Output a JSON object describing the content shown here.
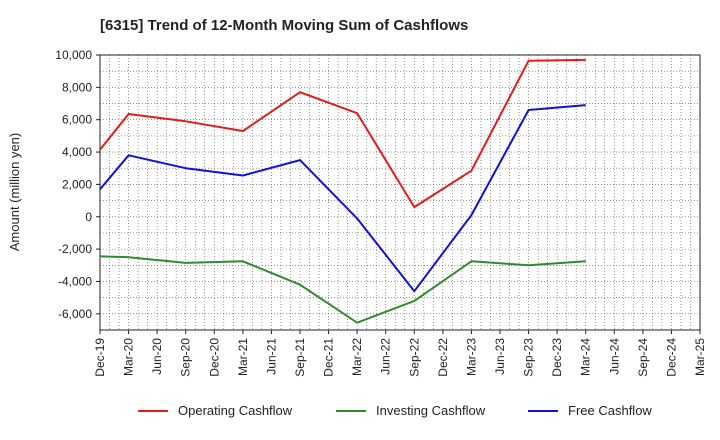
{
  "chart_data": {
    "type": "line",
    "title": "[6315]  Trend of 12-Month Moving Sum of Cashflows",
    "xlabel": "",
    "ylabel": "Amount (million yen)",
    "ylim": [
      -7000,
      10000
    ],
    "yticks": [
      -6000,
      -4000,
      -2000,
      0,
      2000,
      4000,
      6000,
      8000,
      10000
    ],
    "ytick_labels": [
      "-6,000",
      "-4,000",
      "-2,000",
      "0",
      "2,000",
      "4,000",
      "6,000",
      "8,000",
      "10,000"
    ],
    "categories": [
      "Dec-19",
      "Mar-20",
      "Jun-20",
      "Sep-20",
      "Dec-20",
      "Mar-21",
      "Jun-21",
      "Sep-21",
      "Dec-21",
      "Mar-22",
      "Jun-22",
      "Sep-22",
      "Dec-22",
      "Mar-23",
      "Jun-23",
      "Sep-23",
      "Dec-23",
      "Mar-24",
      "Jun-24",
      "Sep-24",
      "Dec-24",
      "Mar-25"
    ],
    "grid": true,
    "legend_position": "bottom",
    "series": [
      {
        "name": "Operating Cashflow",
        "color": "#e41a1c",
        "values": [
          4150,
          6350,
          null,
          5900,
          null,
          5300,
          null,
          7700,
          null,
          6400,
          null,
          600,
          null,
          2850,
          null,
          9650,
          null,
          9700,
          null,
          null,
          null,
          null
        ]
      },
      {
        "name": "Investing Cashflow",
        "color": "#2e8b2e",
        "values": [
          -2450,
          -2500,
          null,
          -2850,
          null,
          -2750,
          null,
          -4200,
          null,
          -6550,
          null,
          -5200,
          null,
          -2750,
          null,
          -3000,
          null,
          -2750,
          null,
          null,
          null,
          null
        ]
      },
      {
        "name": "Free Cashflow",
        "color": "#1111dd",
        "values": [
          1700,
          3800,
          null,
          3000,
          null,
          2550,
          null,
          3500,
          null,
          -100,
          null,
          -4600,
          null,
          100,
          null,
          6600,
          null,
          6900,
          null,
          null,
          null,
          null
        ]
      }
    ]
  }
}
